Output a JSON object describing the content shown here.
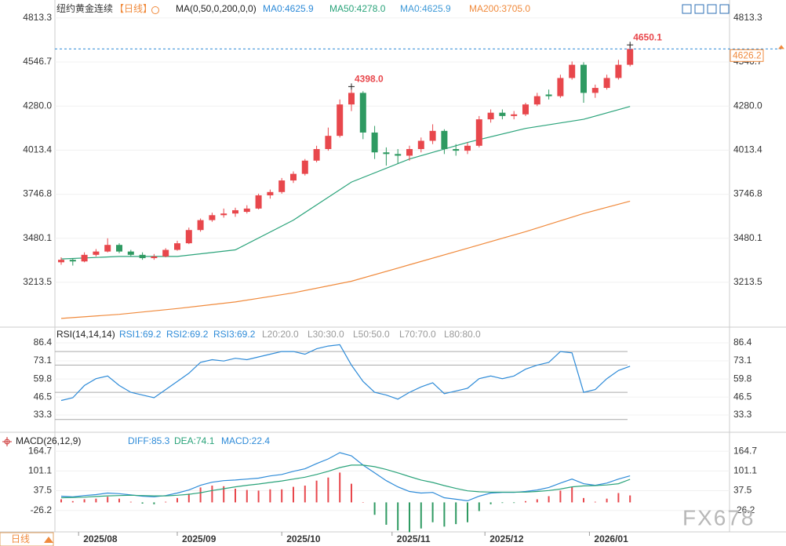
{
  "title": "纽约黄金连续",
  "period": "【日线】",
  "period_tab": "日线",
  "watermark": "FX678",
  "chart_data": [
    {
      "type": "candlestick",
      "legend": [
        {
          "text": "MA(0,50,0,200,0,0)",
          "color": "#222222"
        },
        {
          "text": "MA0:4625.9",
          "color": "#2e8bd8"
        },
        {
          "text": "MA50:4278.0",
          "color": "#2aa37a"
        },
        {
          "text": "MA0:4625.9",
          "color": "#3f9ad8"
        },
        {
          "text": "MA200:3705.0",
          "color": "#f08a3c"
        }
      ],
      "ylim": [
        2952,
        4922
      ],
      "yticks": [
        4813.3,
        4546.7,
        {
          "value": 4280,
          "label": "4280.0"
        },
        4013.4,
        3746.8,
        3480.1,
        3213.5
      ],
      "xticks": [
        {
          "value": 1.5,
          "label": "2025/08"
        },
        {
          "value": 10,
          "label": "2025/09"
        },
        {
          "value": 19,
          "label": "2025/10"
        },
        {
          "value": 28.5,
          "label": "2025/11"
        },
        {
          "value": 36.5,
          "label": "2025/12"
        },
        {
          "value": 45.5,
          "label": "2026/01"
        }
      ],
      "up_color": "#e8474c",
      "down_color": "#2f9a62",
      "ohlc": [
        [
          3335,
          3365,
          3320,
          3350
        ],
        [
          3350,
          3360,
          3315,
          3340
        ],
        [
          3340,
          3395,
          3335,
          3380
        ],
        [
          3380,
          3415,
          3370,
          3400
        ],
        [
          3400,
          3480,
          3395,
          3440
        ],
        [
          3440,
          3450,
          3390,
          3400
        ],
        [
          3400,
          3410,
          3370,
          3380
        ],
        [
          3380,
          3395,
          3350,
          3360
        ],
        [
          3360,
          3385,
          3350,
          3370
        ],
        [
          3370,
          3420,
          3365,
          3410
        ],
        [
          3410,
          3465,
          3405,
          3450
        ],
        [
          3450,
          3545,
          3445,
          3530
        ],
        [
          3530,
          3600,
          3520,
          3590
        ],
        [
          3590,
          3635,
          3580,
          3620
        ],
        [
          3620,
          3660,
          3605,
          3630
        ],
        [
          3630,
          3665,
          3610,
          3650
        ],
        [
          3640,
          3680,
          3630,
          3660
        ],
        [
          3660,
          3750,
          3655,
          3740
        ],
        [
          3740,
          3775,
          3720,
          3760
        ],
        [
          3760,
          3845,
          3750,
          3830
        ],
        [
          3830,
          3885,
          3815,
          3870
        ],
        [
          3870,
          3960,
          3860,
          3950
        ],
        [
          3950,
          4040,
          3940,
          4020
        ],
        [
          4020,
          4150,
          4010,
          4100
        ],
        [
          4100,
          4320,
          4090,
          4290
        ],
        [
          4290,
          4398,
          4250,
          4360
        ],
        [
          4360,
          4370,
          4080,
          4120
        ],
        [
          4120,
          4160,
          3960,
          4000
        ],
        [
          4000,
          4030,
          3920,
          3990
        ],
        [
          3990,
          4020,
          3930,
          3980
        ],
        [
          3980,
          4040,
          3950,
          4020
        ],
        [
          4020,
          4090,
          4000,
          4070
        ],
        [
          4070,
          4170,
          4050,
          4130
        ],
        [
          4130,
          4140,
          3990,
          4020
        ],
        [
          4020,
          4050,
          3980,
          4010
        ],
        [
          4010,
          4060,
          3990,
          4040
        ],
        [
          4040,
          4220,
          4030,
          4200
        ],
        [
          4200,
          4260,
          4180,
          4240
        ],
        [
          4240,
          4260,
          4200,
          4220
        ],
        [
          4220,
          4250,
          4200,
          4230
        ],
        [
          4230,
          4300,
          4220,
          4290
        ],
        [
          4290,
          4360,
          4280,
          4340
        ],
        [
          4350,
          4380,
          4320,
          4340
        ],
        [
          4340,
          4470,
          4330,
          4450
        ],
        [
          4450,
          4550,
          4440,
          4530
        ],
        [
          4530,
          4545,
          4300,
          4360
        ],
        [
          4360,
          4410,
          4330,
          4390
        ],
        [
          4390,
          4470,
          4380,
          4450
        ],
        [
          4450,
          4560,
          4440,
          4530
        ],
        [
          4530,
          4650.1,
          4520,
          4626.2
        ]
      ],
      "lines": [
        {
          "color": "#2aa37a",
          "x": [
            0,
            5,
            10,
            15,
            20,
            25,
            30,
            35,
            40,
            45,
            49
          ],
          "values": [
            3355,
            3370,
            3370,
            3410,
            3590,
            3820,
            3960,
            4060,
            4145,
            4200,
            4278
          ]
        },
        {
          "color": "#f08a3c",
          "x": [
            0,
            5,
            10,
            15,
            20,
            25,
            30,
            35,
            40,
            45,
            49
          ],
          "values": [
            2995,
            3020,
            3055,
            3095,
            3150,
            3220,
            3320,
            3420,
            3520,
            3630,
            3705
          ]
        }
      ],
      "annotations": [
        {
          "x": 25,
          "value": 4398,
          "label": "4398.0"
        },
        {
          "x": 49,
          "value": 4650.1
        }
      ],
      "last_price": 4626.2,
      "last_color": "#f08a3c",
      "line_color": "#2e8bd8"
    },
    {
      "type": "rsi",
      "legend": [
        {
          "text": "RSI(14,14,14)",
          "color": "#222222"
        },
        {
          "text": "RSI1:69.2",
          "color": "#2e8bd8"
        },
        {
          "text": "RSI2:69.2",
          "color": "#2e8bd8"
        },
        {
          "text": "RSI3:69.2",
          "color": "#2e8bd8"
        },
        {
          "text": "L20:20.0",
          "color": "#999999"
        },
        {
          "text": "L30:30.0",
          "color": "#999999"
        },
        {
          "text": "L50:50.0",
          "color": "#999999"
        },
        {
          "text": "L70:70.0",
          "color": "#999999"
        },
        {
          "text": "L80:80.0",
          "color": "#999999"
        }
      ],
      "ylim": [
        24.1,
        93.3
      ],
      "yticks": [
        86.4,
        73.1,
        59.8,
        46.5,
        33.3
      ],
      "levels": [
        20,
        30,
        50,
        70,
        80
      ],
      "series": [
        {
          "color": "#2e8bd8",
          "values": [
            44,
            46,
            55,
            60,
            62,
            55,
            50,
            48,
            46,
            52,
            58,
            64,
            72,
            74,
            73,
            75,
            74,
            76,
            78,
            80,
            80,
            78,
            82,
            84,
            85,
            70,
            58,
            50,
            48,
            45,
            50,
            54,
            57,
            49,
            51,
            53,
            60,
            62,
            60,
            62,
            67,
            70,
            72,
            80,
            79,
            50,
            52,
            60,
            66,
            69.2
          ]
        }
      ]
    },
    {
      "type": "macd",
      "legend": [
        {
          "text": "MACD(26,12,9)",
          "color": "#222222"
        },
        {
          "text": "DIFF:85.3",
          "color": "#2e8bd8"
        },
        {
          "text": "DEA:74.1",
          "color": "#2aa37a"
        },
        {
          "text": "MACD:22.4",
          "color": "#2e8bd8"
        }
      ],
      "ylim": [
        -100,
        203
      ],
      "yticks": [
        164.7,
        101.1,
        37.5,
        -26.2
      ],
      "series": [
        {
          "color": "#2e8bd8",
          "values": [
            20,
            18,
            22,
            25,
            30,
            28,
            24,
            20,
            18,
            22,
            30,
            40,
            55,
            65,
            70,
            72,
            75,
            78,
            85,
            90,
            100,
            108,
            125,
            140,
            160,
            150,
            120,
            95,
            70,
            50,
            35,
            30,
            32,
            15,
            10,
            5,
            20,
            30,
            32,
            32,
            35,
            40,
            48,
            62,
            75,
            60,
            55,
            62,
            75,
            85.3
          ]
        },
        {
          "color": "#2aa37a",
          "values": [
            15,
            16,
            17,
            19,
            21,
            22,
            23,
            22,
            21,
            21,
            23,
            26,
            31,
            38,
            44,
            50,
            55,
            59,
            64,
            69,
            75,
            81,
            90,
            100,
            112,
            120,
            120,
            115,
            106,
            95,
            83,
            72,
            64,
            54,
            45,
            37,
            34,
            33,
            33,
            33,
            33,
            35,
            38,
            43,
            50,
            53,
            54,
            56,
            60,
            74.1
          ]
        }
      ],
      "histogram": {
        "up_color": "#e8474c",
        "down_color": "#2f9a62",
        "values": [
          10,
          4,
          10,
          12,
          18,
          12,
          2,
          -4,
          -6,
          2,
          14,
          28,
          48,
          54,
          52,
          44,
          40,
          38,
          42,
          42,
          50,
          54,
          70,
          80,
          96,
          60,
          0,
          -40,
          -72,
          -90,
          -96,
          -84,
          -64,
          -78,
          -70,
          -64,
          -28,
          -6,
          -2,
          -2,
          4,
          10,
          20,
          38,
          50,
          14,
          2,
          12,
          30,
          22.4
        ]
      }
    }
  ]
}
